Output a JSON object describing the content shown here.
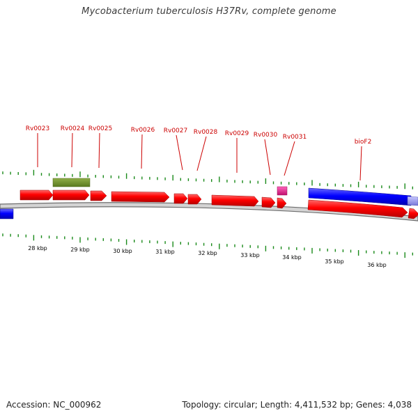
{
  "title": "Mycobacterium tuberculosis H37Rv, complete genome",
  "footer": {
    "accession": "Accession: NC_000962",
    "topology": "Topology: circular; Length: 4,411,532 bp; Genes: 4,038"
  },
  "colors": {
    "cds_forward": "#ff0000",
    "cds_reverse": "#0000ff",
    "misc_feature": "#6e8b2a",
    "small_feature": "#e0208c",
    "label": "#cc0000",
    "tick": "#1a8a1a",
    "backbone": "#8c8c8c"
  },
  "gene_labels": [
    "Rv0023",
    "Rv0024",
    "Rv0025",
    "Rv0026",
    "Rv0027",
    "Rv0028",
    "Rv0029",
    "Rv0030",
    "Rv0031",
    "bioF2"
  ],
  "scale_labels": [
    "28 kbp",
    "29 kbp",
    "30 kbp",
    "31 kbp",
    "32 kbp",
    "33 kbp",
    "34 kbp",
    "35 kbp",
    "36 kbp"
  ]
}
